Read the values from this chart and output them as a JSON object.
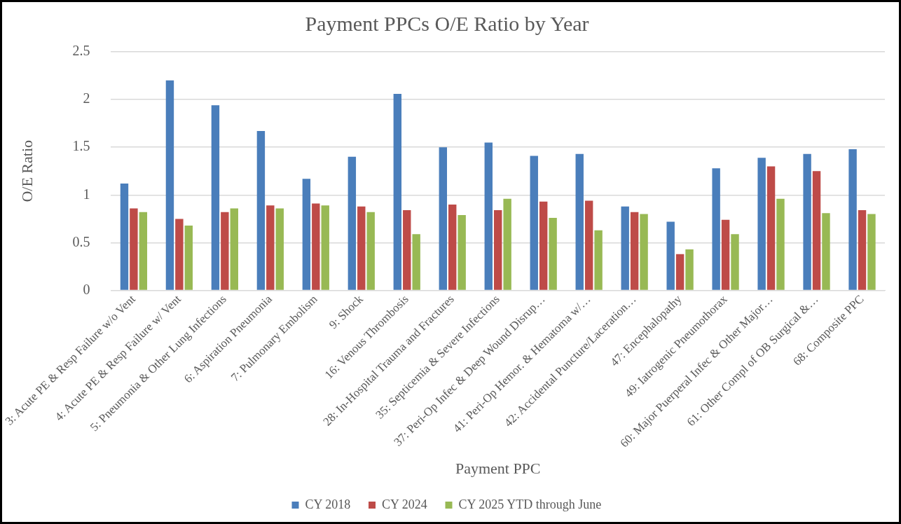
{
  "chart_data": {
    "type": "bar",
    "title": "Payment PPCs O/E Ratio by Year",
    "xlabel": "Payment PPC",
    "ylabel": "O/E Ratio",
    "categories": [
      "3: Acute PE & Resp Failure w/o Vent",
      "4: Acute PE & Resp Failure w/ Vent",
      "5: Pneumonia & Other Lung Infections",
      "6: Aspiration Pneumonia",
      "7: Pulmonary Embolism",
      "9: Shock",
      "16: Venous Thrombosis",
      "28: In-Hospital Trauma and Fractures",
      "35: Septicemia & Severe Infections",
      "37: Peri-Op Infec & Deep Wound Disrup…",
      "41: Peri-Op Hemor. & Hematoma w/…",
      "42: Accidental Puncture/Laceration…",
      "47: Encephalopathy",
      "49: Iatrogenic Pneumothorax",
      "60: Major Puerperal Infec & Other Major…",
      "61: Other Compl of OB Surgical &…",
      "68: Composite PPC"
    ],
    "series": [
      {
        "name": "CY 2018",
        "color": "#4a7ebb",
        "values": [
          1.12,
          2.2,
          1.94,
          1.67,
          1.17,
          1.4,
          2.06,
          1.5,
          1.55,
          1.41,
          1.43,
          0.88,
          0.72,
          1.28,
          1.39,
          1.43,
          1.48
        ]
      },
      {
        "name": "CY 2024",
        "color": "#be4b48",
        "values": [
          0.86,
          0.75,
          0.82,
          0.89,
          0.91,
          0.88,
          0.84,
          0.9,
          0.84,
          0.93,
          0.94,
          0.82,
          0.38,
          0.74,
          1.3,
          1.25,
          0.84
        ]
      },
      {
        "name": "CY 2025 YTD through June",
        "color": "#98b954",
        "values": [
          0.82,
          0.68,
          0.86,
          0.86,
          0.89,
          0.82,
          0.59,
          0.79,
          0.96,
          0.76,
          0.63,
          0.8,
          0.43,
          0.59,
          0.96,
          0.81,
          0.8
        ]
      }
    ],
    "ylim": [
      0,
      2.5
    ],
    "yticks": [
      0,
      0.5,
      1,
      1.5,
      2,
      2.5
    ],
    "grid": "y",
    "legend": "bottom"
  }
}
